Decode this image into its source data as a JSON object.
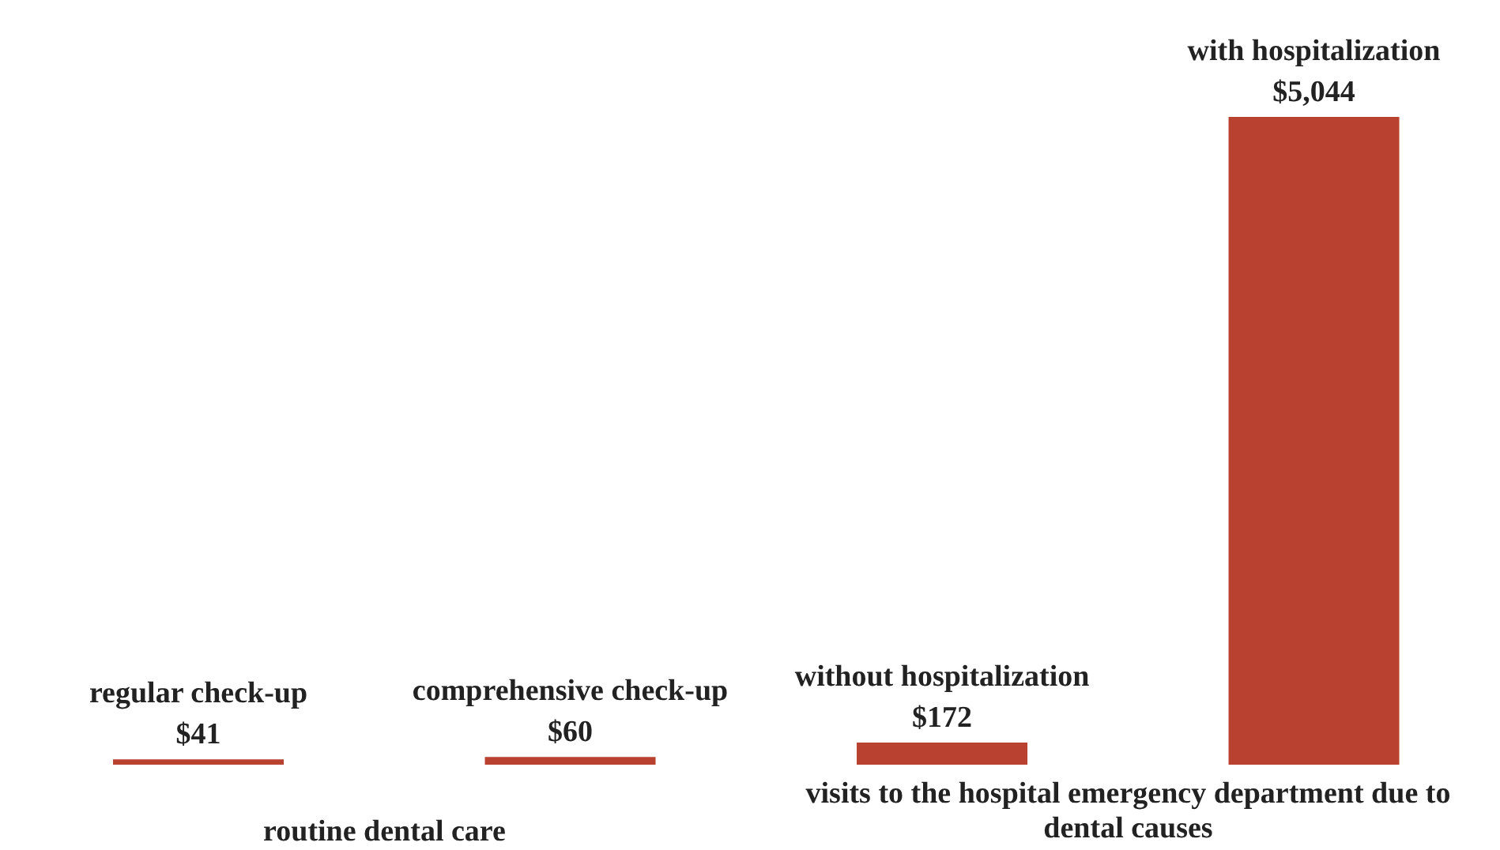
{
  "chart_data": {
    "type": "bar",
    "categories": [
      "regular check-up",
      "comprehensive check-up",
      "without hospitalization",
      "with hospitalization"
    ],
    "values": [
      41,
      60,
      172,
      5044
    ],
    "value_labels": [
      "$41",
      "$60",
      "$172",
      "$5,044"
    ],
    "color": "#b84130",
    "annotations": [
      "routine dental care",
      "visits to the hospital emergency department due to dental causes"
    ]
  }
}
